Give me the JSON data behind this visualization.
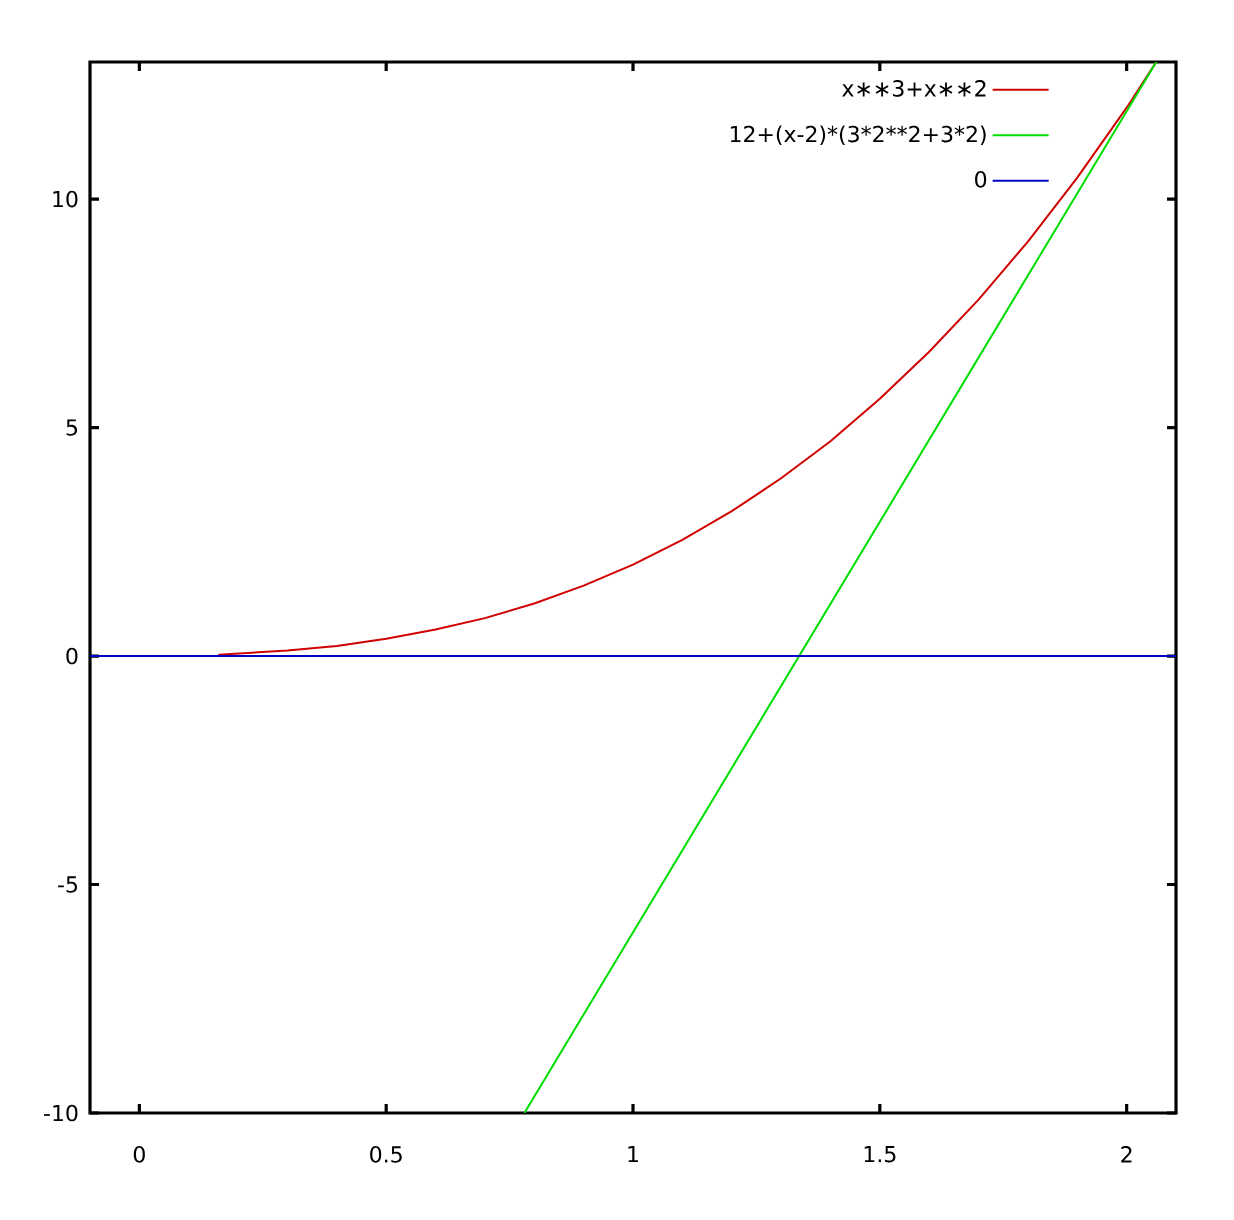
{
  "chart_data": {
    "type": "line",
    "series": [
      {
        "name": "x∗∗3+x∗∗2",
        "color": "#d00000",
        "x": [
          0.16,
          0.3,
          0.4,
          0.5,
          0.6,
          0.7,
          0.8,
          0.9,
          1.0,
          1.1,
          1.2,
          1.3,
          1.4,
          1.5,
          1.6,
          1.7,
          1.8,
          1.9,
          2.0,
          2.06
        ],
        "values": [
          0.03,
          0.12,
          0.22,
          0.38,
          0.58,
          0.83,
          1.15,
          1.54,
          2.0,
          2.54,
          3.17,
          3.89,
          4.7,
          5.63,
          6.66,
          7.8,
          9.07,
          10.47,
          12.0,
          13.0
        ]
      },
      {
        "name": "12+(x-2)*(3*2**2+3*2)",
        "color": "#00dd00",
        "x": [
          0.78,
          2.06
        ],
        "values": [
          -10,
          13
        ]
      },
      {
        "name": "0",
        "color": "#0000c8",
        "x": [
          -0.1,
          2.1
        ],
        "values": [
          0,
          0
        ]
      }
    ],
    "xlim": [
      -0.1,
      2.1
    ],
    "ylim": [
      -10,
      13
    ],
    "xticks": [
      0,
      0.5,
      1,
      1.5,
      2
    ],
    "yticks": [
      -10,
      -5,
      0,
      5,
      10
    ],
    "legend": "top right",
    "marker": "none",
    "line_style": "solid"
  }
}
